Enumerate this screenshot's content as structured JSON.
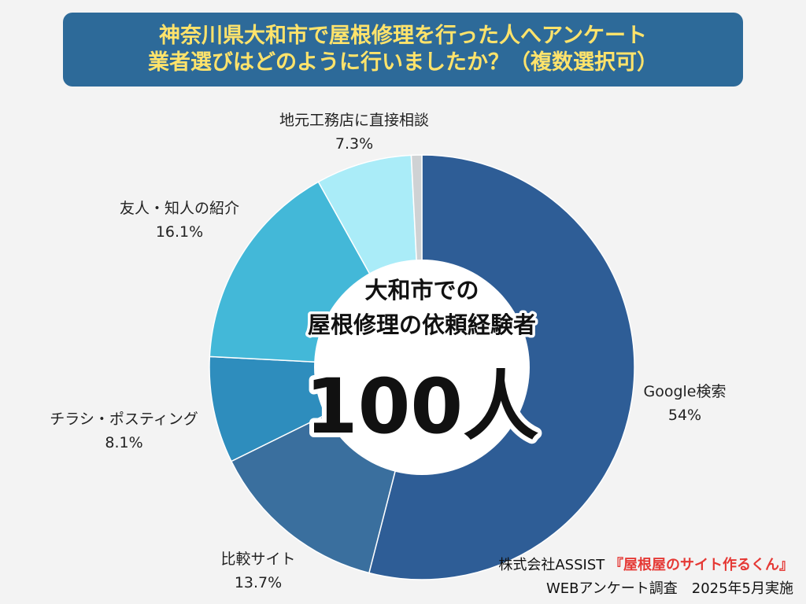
{
  "title": {
    "line1": "神奈川県大和市で屋根修理を行った人へアンケート",
    "line2": "業者選びはどのように行いましたか？（複数選択可）"
  },
  "center": {
    "line1": "大和市での",
    "line2": "屋根修理の依頼経験者",
    "count": "100人"
  },
  "footer": {
    "company": "株式会社ASSIST",
    "service": "『屋根屋のサイト作るくん』",
    "survey": "WEBアンケート調査　2025年5月実施"
  },
  "chart_data": {
    "type": "pie",
    "series": [
      {
        "name": "Google検索",
        "value": 54,
        "value_label": "54%",
        "color": "#2e5d96"
      },
      {
        "name": "比較サイト",
        "value": 13.7,
        "value_label": "13.7%",
        "color": "#3a6f9e"
      },
      {
        "name": "チラシ・ポスティング",
        "value": 8.1,
        "value_label": "8.1%",
        "color": "#2e8dbd"
      },
      {
        "name": "友人・知人の紹介",
        "value": 16.1,
        "value_label": "16.1%",
        "color": "#43b8d8"
      },
      {
        "name": "地元工務店に直接相談",
        "value": 7.3,
        "value_label": "7.3%",
        "color": "#aaecf8"
      },
      {
        "name": "",
        "value": 0.8,
        "value_label": "",
        "color": "#cfd2d4"
      }
    ]
  }
}
